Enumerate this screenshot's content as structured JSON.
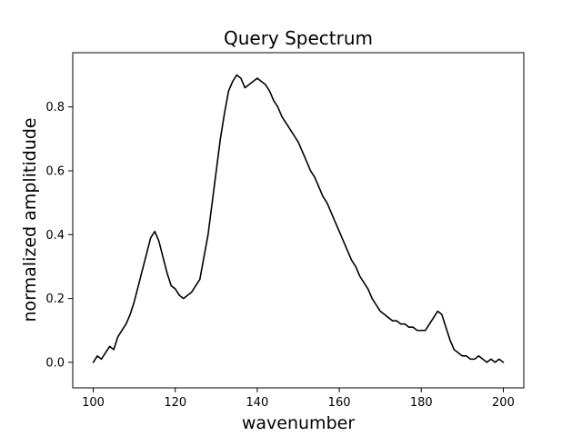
{
  "chart_data": {
    "type": "line",
    "title": "Query Spectrum",
    "xlabel": "wavenumber",
    "ylabel": "normalized amplitidude",
    "xlim": [
      95,
      205
    ],
    "ylim": [
      -0.08,
      0.97
    ],
    "xticks": [
      100,
      120,
      140,
      160,
      180,
      200
    ],
    "xtick_labels": [
      "100",
      "120",
      "140",
      "160",
      "180",
      "200"
    ],
    "yticks": [
      0.0,
      0.2,
      0.4,
      0.6,
      0.8
    ],
    "ytick_labels": [
      "0.0",
      "0.2",
      "0.4",
      "0.6",
      "0.8"
    ],
    "grid": false,
    "legend": "none",
    "line_color": "#000000",
    "series": [
      {
        "x": [
          100,
          101,
          102,
          103,
          104,
          105,
          106,
          107,
          108,
          109,
          110,
          111,
          112,
          113,
          114,
          115,
          116,
          117,
          118,
          119,
          120,
          121,
          122,
          123,
          124,
          125,
          126,
          127,
          128,
          129,
          130,
          131,
          132,
          133,
          134,
          135,
          136,
          137,
          138,
          139,
          140,
          141,
          142,
          143,
          144,
          145,
          146,
          147,
          148,
          149,
          150,
          151,
          152,
          153,
          154,
          155,
          156,
          157,
          158,
          159,
          160,
          161,
          162,
          163,
          164,
          165,
          166,
          167,
          168,
          169,
          170,
          171,
          172,
          173,
          174,
          175,
          176,
          177,
          178,
          179,
          180,
          181,
          182,
          183,
          184,
          185,
          186,
          187,
          188,
          189,
          190,
          191,
          192,
          193,
          194,
          195,
          196,
          197,
          198,
          199,
          200
        ],
        "y": [
          0.0,
          0.02,
          0.01,
          0.03,
          0.05,
          0.04,
          0.08,
          0.1,
          0.12,
          0.15,
          0.19,
          0.24,
          0.29,
          0.34,
          0.39,
          0.41,
          0.38,
          0.33,
          0.28,
          0.24,
          0.23,
          0.21,
          0.2,
          0.21,
          0.22,
          0.24,
          0.26,
          0.33,
          0.4,
          0.5,
          0.6,
          0.7,
          0.78,
          0.85,
          0.88,
          0.9,
          0.89,
          0.86,
          0.87,
          0.88,
          0.89,
          0.88,
          0.87,
          0.85,
          0.82,
          0.8,
          0.77,
          0.75,
          0.73,
          0.71,
          0.69,
          0.66,
          0.63,
          0.6,
          0.58,
          0.55,
          0.52,
          0.5,
          0.47,
          0.44,
          0.41,
          0.38,
          0.35,
          0.32,
          0.3,
          0.27,
          0.25,
          0.23,
          0.2,
          0.18,
          0.16,
          0.15,
          0.14,
          0.13,
          0.13,
          0.12,
          0.12,
          0.11,
          0.11,
          0.1,
          0.1,
          0.1,
          0.12,
          0.14,
          0.16,
          0.15,
          0.11,
          0.07,
          0.04,
          0.03,
          0.02,
          0.02,
          0.01,
          0.01,
          0.02,
          0.01,
          0.0,
          0.01,
          0.0,
          0.01,
          0.0
        ]
      }
    ]
  }
}
